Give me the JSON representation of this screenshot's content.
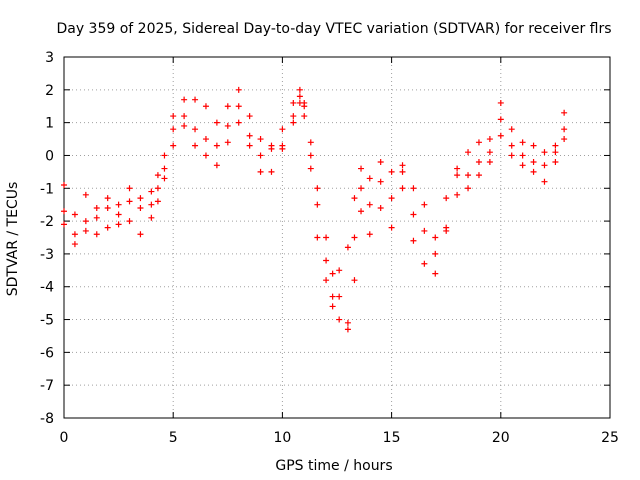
{
  "chart_data": {
    "type": "scatter",
    "title": "Day 359 of 2025, Sidereal Day-to-day VTEC variation (SDTVAR) for receiver flrs",
    "xlabel": "GPS time / hours",
    "ylabel": "SDTVAR / TECUs",
    "xlim": [
      0,
      25
    ],
    "ylim": [
      -8,
      3
    ],
    "xticks": [
      "0",
      "5",
      "10",
      "15",
      "20",
      "25"
    ],
    "yticks": [
      "-8",
      "-7",
      "-6",
      "-5",
      "-4",
      "-3",
      "-2",
      "-1",
      "0",
      "1",
      "2",
      "3"
    ],
    "xtick_values": [
      0,
      5,
      10,
      15,
      20,
      25
    ],
    "ytick_values": [
      -8,
      -7,
      -6,
      -5,
      -4,
      -3,
      -2,
      -1,
      0,
      1,
      2,
      3
    ],
    "grid": true,
    "marker": "+",
    "series_color": "#ff0000",
    "series": [
      {
        "x": [
          0.0,
          0.5,
          1.0,
          1.5,
          2.0,
          2.5,
          3.0,
          3.5,
          4.0,
          4.3,
          4.6,
          5.0,
          5.5,
          6.0,
          6.5,
          7.0,
          7.5,
          8.0,
          8.5,
          9.0,
          9.5,
          10.0,
          10.5,
          10.8,
          11.0,
          11.3,
          11.6,
          12.0,
          12.3,
          12.6,
          13.0,
          13.3,
          13.6,
          14.0,
          14.5,
          15.0,
          15.5,
          16.0,
          16.5,
          17.0,
          17.5,
          18.0,
          18.5,
          19.0,
          19.5,
          20.0,
          20.5,
          21.0,
          21.5,
          22.0,
          22.5,
          22.9
        ],
        "y": [
          -0.9,
          -1.8,
          -1.2,
          -1.6,
          -1.3,
          -1.5,
          -1.0,
          -1.3,
          -1.1,
          -0.6,
          0.0,
          1.2,
          1.7,
          1.7,
          1.5,
          1.0,
          1.5,
          2.0,
          1.2,
          0.5,
          0.3,
          0.2,
          1.0,
          1.8,
          1.5,
          0.0,
          -1.5,
          -3.2,
          -4.3,
          -3.5,
          -2.8,
          -1.3,
          -0.4,
          -0.7,
          -0.2,
          -0.5,
          -0.3,
          -1.0,
          -1.5,
          -2.5,
          -1.3,
          -0.6,
          0.1,
          0.4,
          0.5,
          1.6,
          0.8,
          0.4,
          0.3,
          0.1,
          0.3,
          1.3
        ]
      },
      {
        "x": [
          0.0,
          0.5,
          1.0,
          1.5,
          2.0,
          2.5,
          3.0,
          3.5,
          4.0,
          4.3,
          4.6,
          5.0,
          5.5,
          6.0,
          6.5,
          7.0,
          7.5,
          8.0,
          8.5,
          9.0,
          9.5,
          10.0,
          10.5,
          10.8,
          11.0,
          11.3,
          11.6,
          12.0,
          12.3,
          12.6,
          13.0,
          13.3,
          13.6,
          14.0,
          14.5,
          15.0,
          15.5,
          16.0,
          16.5,
          17.0,
          17.5,
          18.0,
          18.5,
          19.0,
          19.5,
          20.0,
          20.5,
          21.0,
          21.5,
          22.0,
          22.5,
          22.9
        ],
        "y": [
          -1.7,
          -2.4,
          -2.0,
          -1.9,
          -1.6,
          -1.8,
          -1.4,
          -1.6,
          -1.5,
          -1.0,
          -0.4,
          0.8,
          1.2,
          0.8,
          0.5,
          0.3,
          0.9,
          1.5,
          0.6,
          0.0,
          0.2,
          0.8,
          1.6,
          2.0,
          1.6,
          0.4,
          -1.0,
          -2.5,
          -3.6,
          -4.3,
          -5.1,
          -2.5,
          -1.0,
          -1.5,
          -0.8,
          -1.3,
          -0.5,
          -1.8,
          -2.3,
          -3.0,
          -2.3,
          -1.2,
          -0.6,
          -0.2,
          0.1,
          1.1,
          0.3,
          0.0,
          -0.2,
          -0.8,
          0.1,
          0.8
        ]
      },
      {
        "x": [
          0.0,
          0.5,
          1.0,
          1.5,
          2.0,
          2.5,
          3.0,
          3.5,
          4.0,
          4.3,
          4.6,
          5.0,
          5.5,
          6.0,
          6.5,
          7.0,
          7.5,
          8.0,
          8.5,
          9.0,
          9.5,
          10.0,
          10.5,
          10.8,
          11.0,
          11.3,
          11.6,
          12.0,
          12.3,
          12.6,
          13.0,
          13.3,
          13.6,
          14.0,
          14.5,
          15.0,
          15.5,
          16.0,
          16.5,
          17.0,
          17.5,
          18.0,
          18.5,
          19.0,
          19.5,
          20.0,
          20.5,
          21.0,
          21.5,
          22.0,
          22.5,
          22.9
        ],
        "y": [
          -2.1,
          -2.7,
          -2.3,
          -2.4,
          -2.2,
          -2.1,
          -2.0,
          -2.4,
          -1.9,
          -1.4,
          -0.7,
          0.3,
          0.9,
          0.3,
          0.0,
          -0.3,
          0.4,
          1.0,
          0.3,
          -0.5,
          -0.5,
          0.3,
          1.2,
          1.6,
          1.2,
          -0.4,
          -2.5,
          -3.8,
          -4.6,
          -5.0,
          -5.3,
          -3.8,
          -1.7,
          -2.4,
          -1.6,
          -2.2,
          -1.0,
          -2.6,
          -3.3,
          -3.6,
          -2.2,
          -0.4,
          -1.0,
          -0.6,
          -0.2,
          0.6,
          0.0,
          -0.3,
          -0.5,
          -0.3,
          -0.2,
          0.5
        ]
      }
    ]
  }
}
